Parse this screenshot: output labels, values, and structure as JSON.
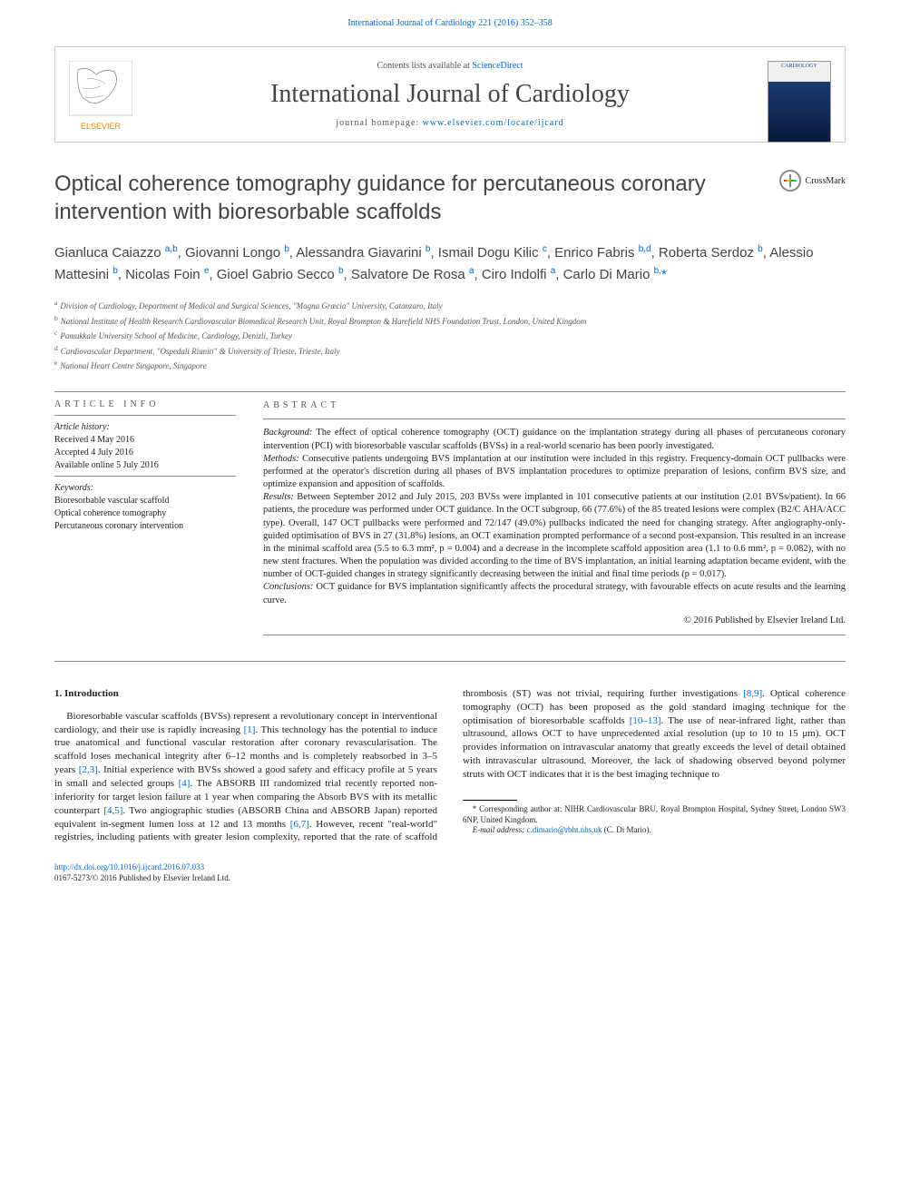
{
  "top_link": "International Journal of Cardiology 221 (2016) 352–358",
  "header": {
    "contents_pre": "Contents lists available at ",
    "contents_link": "ScienceDirect",
    "journal_name": "International Journal of Cardiology",
    "homepage_pre": "journal homepage: ",
    "homepage_link": "www.elsevier.com/locate/ijcard",
    "elsevier_label": "ELSEVIER",
    "cover_label": "CARDIOLOGY"
  },
  "article": {
    "title": "Optical coherence tomography guidance for percutaneous coronary intervention with bioresorbable scaffolds",
    "crossmark_label": "CrossMark",
    "authors_html": "Gianluca Caiazzo <sup>a,b</sup>, Giovanni Longo <sup>b</sup>, Alessandra Giavarini <sup>b</sup>, Ismail Dogu Kilic <sup>c</sup>, Enrico Fabris <sup>b,d</sup>, Roberta Serdoz <sup>b</sup>, Alessio Mattesini <sup>b</sup>, Nicolas Foin <sup>e</sup>, Gioel Gabrio Secco <sup>b</sup>, Salvatore De Rosa <sup>a</sup>, Ciro Indolfi <sup>a</sup>, Carlo Di Mario <sup>b,</sup><span class='corr'>*</span>",
    "affiliations": [
      {
        "key": "a",
        "text": "Division of Cardiology, Department of Medical and Surgical Sciences, \"Magna Græcia\" University, Catanzaro, Italy"
      },
      {
        "key": "b",
        "text": "National Institute of Health Research Cardiovascular Biomedical Research Unit, Royal Brompton & Harefield NHS Foundation Trust, London, United Kingdom"
      },
      {
        "key": "c",
        "text": "Pamukkale University School of Medicine, Cardiology, Denizli, Turkey"
      },
      {
        "key": "d",
        "text": "Cardiovascular Department, \"Ospedali Riuniti\" & University of Trieste, Trieste, Italy"
      },
      {
        "key": "e",
        "text": "National Heart Centre Singapore, Singapore"
      }
    ]
  },
  "info": {
    "heading": "ARTICLE INFO",
    "history_label": "Article history:",
    "history": [
      "Received 4 May 2016",
      "Accepted 4 July 2016",
      "Available online 5 July 2016"
    ],
    "keywords_label": "Keywords:",
    "keywords": [
      "Bioresorbable vascular scaffold",
      "Optical coherence tomography",
      "Percutaneous coronary intervention"
    ]
  },
  "abstract": {
    "heading": "ABSTRACT",
    "background_label": "Background:",
    "background": " The effect of optical coherence tomography (OCT) guidance on the implantation strategy during all phases of percutaneous coronary intervention (PCI) with bioresorbable vascular scaffolds (BVSs) in a real-world scenario has been poorly investigated.",
    "methods_label": "Methods:",
    "methods": " Consecutive patients undergoing BVS implantation at our institution were included in this registry. Frequency-domain OCT pullbacks were performed at the operator's discretion during all phases of BVS implantation procedures to optimize preparation of lesions, confirm BVS size, and optimize expansion and apposition of scaffolds.",
    "results_label": "Results:",
    "results": " Between September 2012 and July 2015, 203 BVSs were implanted in 101 consecutive patients at our institution (2.01 BVSs/patient). In 66 patients, the procedure was performed under OCT guidance. In the OCT subgroup, 66 (77.6%) of the 85 treated lesions were complex (B2/C AHA/ACC type). Overall, 147 OCT pullbacks were performed and 72/147 (49.0%) pullbacks indicated the need for changing strategy. After angiography-only-guided optimisation of BVS in 27 (31.8%) lesions, an OCT examination prompted performance of a second post-expansion. This resulted in an increase in the minimal scaffold area (5.5 to 6.3 mm², p = 0.004) and a decrease in the incomplete scaffold apposition area (1.1 to 0.6 mm², p = 0.082), with no new stent fractures. When the population was divided according to the time of BVS implantation, an initial learning adaptation became evident, with the number of OCT-guided changes in strategy significantly decreasing between the initial and final time periods (p = 0.017).",
    "conclusions_label": "Conclusions:",
    "conclusions": " OCT guidance for BVS implantation significantly affects the procedural strategy, with favourable effects on acute results and the learning curve.",
    "copyright": "© 2016 Published by Elsevier Ireland Ltd."
  },
  "body": {
    "intro_heading": "1. Introduction",
    "intro_p1_pre": "Bioresorbable vascular scaffolds (BVSs) represent a revolutionary concept in interventional cardiology, and their use is rapidly increasing ",
    "intro_ref1": "[1]",
    "intro_p1_mid": ". This technology has the potential to induce true anatomical and functional vascular restoration after coronary revascularisation. The scaffold loses mechanical integrity after 6–12 months and is completely reabsorbed in 3–5 years ",
    "intro_ref23": "[2,3]",
    "intro_p1_mid2": ". Initial experience with BVSs showed a good safety and efficacy profile at 5 years in small and selected groups ",
    "intro_ref4": "[4]",
    "intro_p1_end": ". The ABSORB III randomized trial recently reported non-inferiority",
    "intro_p2_pre": "for target lesion failure at 1 year when comparing the Absorb BVS with its metallic counterpart ",
    "intro_ref45": "[4,5]",
    "intro_p2_mid": ". Two angiographic studies (ABSORB China and ABSORB Japan) reported equivalent in-segment lumen loss at 12 and 13 months ",
    "intro_ref67": "[6,7]",
    "intro_p2_mid2": ". However, recent \"real-world\" registries, including patients with greater lesion complexity, reported that the rate of scaffold thrombosis (ST) was not trivial, requiring further investigations ",
    "intro_ref89": "[8,9]",
    "intro_p2_mid3": ". Optical coherence tomography (OCT) has been proposed as the gold standard imaging technique for the optimisation of bioresorbable scaffolds ",
    "intro_ref1013": "[10–13]",
    "intro_p2_end": ". The use of near-infrared light, rather than ultrasound, allows OCT to have unprecedented axial resolution (up to 10 to 15 μm). OCT provides information on intravascular anatomy that greatly exceeds the level of detail obtained with intravascular ultrasound. Moreover, the lack of shadowing observed beyond polymer struts with OCT indicates that it is the best imaging technique to"
  },
  "footnote": {
    "corr_pre": "* Corresponding author at: NIHR Cardiovascular BRU, Royal Brompton Hospital, Sydney Street, London SW3 6NP, United Kingdom.",
    "email_label": "E-mail address:",
    "email": "c.dimario@rbht.nhs.uk",
    "email_suffix": " (C. Di Mario)."
  },
  "footer": {
    "doi": "http://dx.doi.org/10.1016/j.ijcard.2016.07.033",
    "issn_line": "0167-5273/© 2016 Published by Elsevier Ireland Ltd."
  },
  "colors": {
    "link": "#0066cc",
    "text": "#222222",
    "heading": "#434343",
    "rule": "#888888",
    "elsevier_orange": "#ef8200"
  },
  "typography": {
    "title_pt": 24,
    "journal_pt": 28,
    "body_pt": 11,
    "abstract_pt": 10.5,
    "footnote_pt": 9
  }
}
